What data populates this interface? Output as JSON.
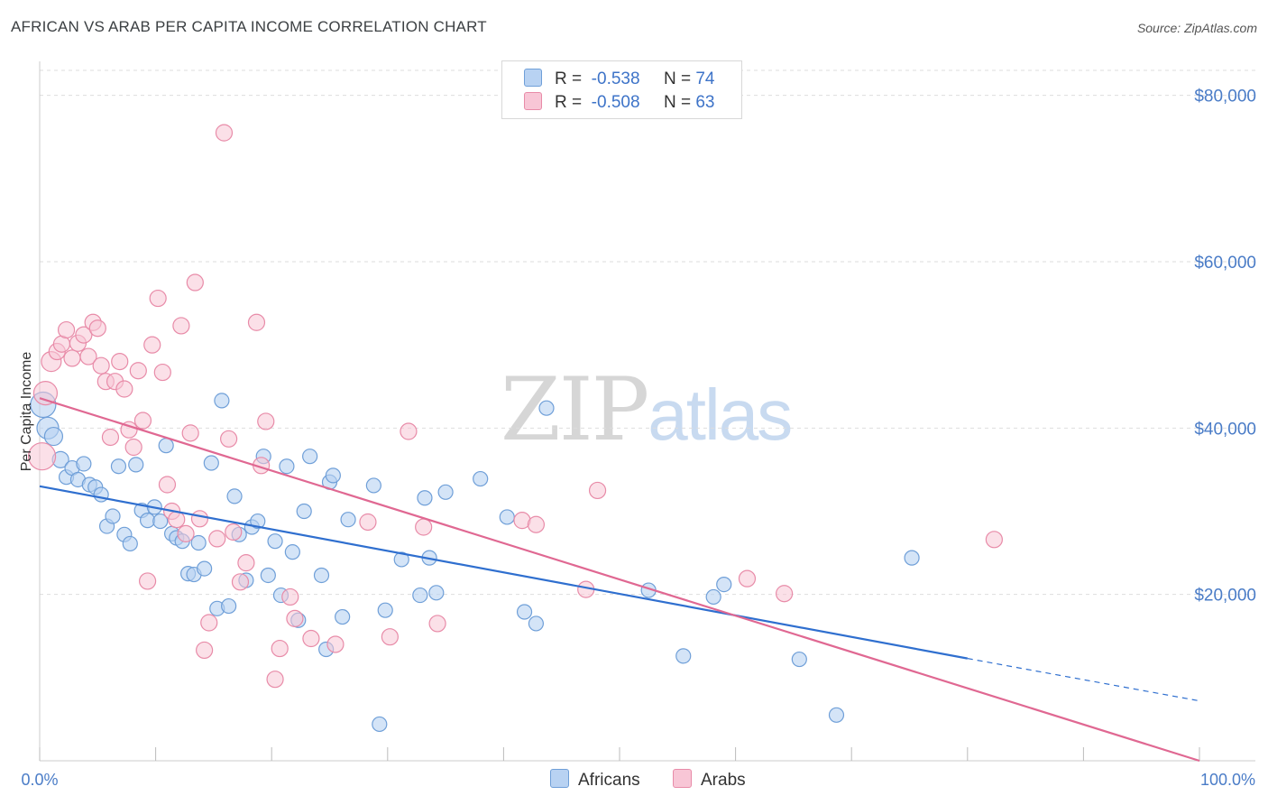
{
  "header": {
    "title": "AFRICAN VS ARAB PER CAPITA INCOME CORRELATION CHART",
    "source": "Source: ZipAtlas.com"
  },
  "legend": {
    "rows": [
      {
        "r_label": "R =",
        "r_value": "-0.538",
        "n_label": "N =",
        "n_value": "74"
      },
      {
        "r_label": "R =",
        "r_value": "-0.508",
        "n_label": "N =",
        "n_value": "63"
      }
    ]
  },
  "bottom_legend": {
    "series1": "Africans",
    "series2": "Arabs"
  },
  "watermark": {
    "part1": "ZIP",
    "part2": "atlas"
  },
  "colors": {
    "africans_fill": "#b8d2f2",
    "africans_stroke": "#6f9fd8",
    "africans_line": "#2f6fcf",
    "arabs_fill": "#f8c6d6",
    "arabs_stroke": "#e88ba8",
    "arabs_line": "#e06892",
    "grid": "#dddddd",
    "axis_text": "#4a7cc7"
  },
  "chart_data": {
    "type": "scatter",
    "title": "AFRICAN VS ARAB PER CAPITA INCOME CORRELATION CHART",
    "xlabel": "",
    "ylabel": "Per Capita Income",
    "xlim": [
      0,
      100
    ],
    "ylim": [
      0,
      83000
    ],
    "x_tick_labels": [
      "0.0%",
      "100.0%"
    ],
    "y_ticks": [
      20000,
      40000,
      60000,
      80000
    ],
    "y_tick_labels": [
      "$20,000",
      "$40,000",
      "$60,000",
      "$80,000"
    ],
    "grid": true,
    "legend_position": "top-center",
    "series": [
      {
        "name": "Africans",
        "r": -0.538,
        "n": 74,
        "trend": {
          "x0": 0,
          "y0": 33000,
          "x1": 80,
          "y1": 12300,
          "dash_to_x": 100,
          "dash_to_y": 7200
        },
        "points": [
          [
            0.3,
            42800,
            14
          ],
          [
            0.7,
            40000,
            12
          ],
          [
            1.2,
            39000,
            10
          ],
          [
            1.8,
            36200,
            9
          ],
          [
            2.3,
            34100,
            8
          ],
          [
            2.8,
            35200,
            8
          ],
          [
            3.3,
            33800,
            8
          ],
          [
            3.8,
            35700,
            8
          ],
          [
            4.3,
            33200,
            8
          ],
          [
            4.8,
            32900,
            8
          ],
          [
            5.3,
            32000,
            8
          ],
          [
            5.8,
            28200,
            8
          ],
          [
            6.3,
            29400,
            8
          ],
          [
            6.8,
            35400,
            8
          ],
          [
            7.3,
            27200,
            8
          ],
          [
            7.8,
            26100,
            8
          ],
          [
            8.3,
            35600,
            8
          ],
          [
            8.8,
            30100,
            8
          ],
          [
            9.3,
            28900,
            8
          ],
          [
            9.9,
            30500,
            8
          ],
          [
            10.4,
            28800,
            8
          ],
          [
            10.9,
            37900,
            8
          ],
          [
            11.4,
            27300,
            8
          ],
          [
            11.8,
            26800,
            8
          ],
          [
            12.3,
            26400,
            8
          ],
          [
            12.8,
            22500,
            8
          ],
          [
            13.3,
            22400,
            8
          ],
          [
            13.7,
            26200,
            8
          ],
          [
            14.2,
            23100,
            8
          ],
          [
            14.8,
            35800,
            8
          ],
          [
            15.3,
            18300,
            8
          ],
          [
            15.7,
            43300,
            8
          ],
          [
            16.3,
            18600,
            8
          ],
          [
            16.8,
            31800,
            8
          ],
          [
            17.2,
            27200,
            8
          ],
          [
            17.8,
            21700,
            8
          ],
          [
            18.3,
            28100,
            8
          ],
          [
            18.8,
            28800,
            8
          ],
          [
            19.3,
            36600,
            8
          ],
          [
            19.7,
            22300,
            8
          ],
          [
            20.3,
            26400,
            8
          ],
          [
            20.8,
            19900,
            8
          ],
          [
            21.3,
            35400,
            8
          ],
          [
            21.8,
            25100,
            8
          ],
          [
            22.3,
            16900,
            8
          ],
          [
            22.8,
            30000,
            8
          ],
          [
            23.3,
            36600,
            8
          ],
          [
            24.3,
            22300,
            8
          ],
          [
            24.7,
            13400,
            8
          ],
          [
            25.0,
            33500,
            8
          ],
          [
            25.3,
            34300,
            8
          ],
          [
            26.1,
            17300,
            8
          ],
          [
            26.6,
            29000,
            8
          ],
          [
            28.8,
            33100,
            8
          ],
          [
            29.3,
            4400,
            8
          ],
          [
            29.8,
            18100,
            8
          ],
          [
            31.2,
            24200,
            8
          ],
          [
            32.8,
            19900,
            8
          ],
          [
            33.2,
            31600,
            8
          ],
          [
            33.6,
            24400,
            8
          ],
          [
            34.2,
            20200,
            8
          ],
          [
            35.0,
            32300,
            8
          ],
          [
            38.0,
            33900,
            8
          ],
          [
            40.3,
            29300,
            8
          ],
          [
            41.8,
            17900,
            8
          ],
          [
            42.8,
            16500,
            8
          ],
          [
            43.7,
            42400,
            8
          ],
          [
            52.5,
            20500,
            8
          ],
          [
            55.5,
            12600,
            8
          ],
          [
            58.1,
            19700,
            8
          ],
          [
            59.0,
            21200,
            8
          ],
          [
            65.5,
            12200,
            8
          ],
          [
            68.7,
            5500,
            8
          ],
          [
            75.2,
            24400,
            8
          ]
        ]
      },
      {
        "name": "Arabs",
        "r": -0.508,
        "n": 63,
        "trend": {
          "x0": 0,
          "y0": 43600,
          "x1": 100,
          "y1": 0
        },
        "points": [
          [
            0.2,
            36600,
            15
          ],
          [
            0.5,
            44200,
            13
          ],
          [
            1.0,
            48000,
            11
          ],
          [
            1.5,
            49200,
            9
          ],
          [
            1.9,
            50100,
            9
          ],
          [
            2.3,
            51800,
            9
          ],
          [
            2.8,
            48400,
            9
          ],
          [
            3.3,
            50200,
            9
          ],
          [
            3.8,
            51200,
            9
          ],
          [
            4.2,
            48600,
            9
          ],
          [
            4.6,
            52700,
            9
          ],
          [
            5.0,
            52000,
            9
          ],
          [
            5.3,
            47500,
            9
          ],
          [
            5.7,
            45600,
            9
          ],
          [
            6.1,
            38900,
            9
          ],
          [
            6.5,
            45600,
            9
          ],
          [
            6.9,
            48000,
            9
          ],
          [
            7.3,
            44700,
            9
          ],
          [
            7.7,
            39800,
            9
          ],
          [
            8.1,
            37700,
            9
          ],
          [
            8.5,
            46900,
            9
          ],
          [
            8.9,
            40900,
            9
          ],
          [
            9.3,
            21600,
            9
          ],
          [
            9.7,
            50000,
            9
          ],
          [
            10.2,
            55600,
            9
          ],
          [
            10.6,
            46700,
            9
          ],
          [
            11.0,
            33200,
            9
          ],
          [
            11.4,
            30000,
            9
          ],
          [
            11.8,
            29000,
            9
          ],
          [
            12.2,
            52300,
            9
          ],
          [
            12.6,
            27300,
            9
          ],
          [
            13.0,
            39400,
            9
          ],
          [
            13.4,
            57500,
            9
          ],
          [
            13.8,
            29100,
            9
          ],
          [
            14.2,
            13300,
            9
          ],
          [
            14.6,
            16600,
            9
          ],
          [
            15.3,
            26700,
            9
          ],
          [
            15.9,
            75500,
            9
          ],
          [
            16.3,
            38700,
            9
          ],
          [
            16.7,
            27500,
            9
          ],
          [
            17.3,
            21500,
            9
          ],
          [
            17.8,
            23800,
            9
          ],
          [
            18.7,
            52700,
            9
          ],
          [
            19.1,
            35500,
            9
          ],
          [
            19.5,
            40800,
            9
          ],
          [
            20.3,
            9800,
            9
          ],
          [
            20.7,
            13500,
            9
          ],
          [
            21.6,
            19700,
            9
          ],
          [
            22.0,
            17100,
            9
          ],
          [
            23.4,
            14700,
            9
          ],
          [
            25.5,
            14000,
            9
          ],
          [
            28.3,
            28700,
            9
          ],
          [
            30.2,
            14900,
            9
          ],
          [
            31.8,
            39600,
            9
          ],
          [
            33.1,
            28100,
            9
          ],
          [
            34.3,
            16500,
            9
          ],
          [
            41.6,
            28900,
            9
          ],
          [
            42.8,
            28400,
            9
          ],
          [
            47.1,
            20600,
            9
          ],
          [
            48.1,
            32500,
            9
          ],
          [
            61.0,
            21900,
            9
          ],
          [
            64.2,
            20100,
            9
          ],
          [
            82.3,
            26600,
            9
          ]
        ]
      }
    ]
  }
}
